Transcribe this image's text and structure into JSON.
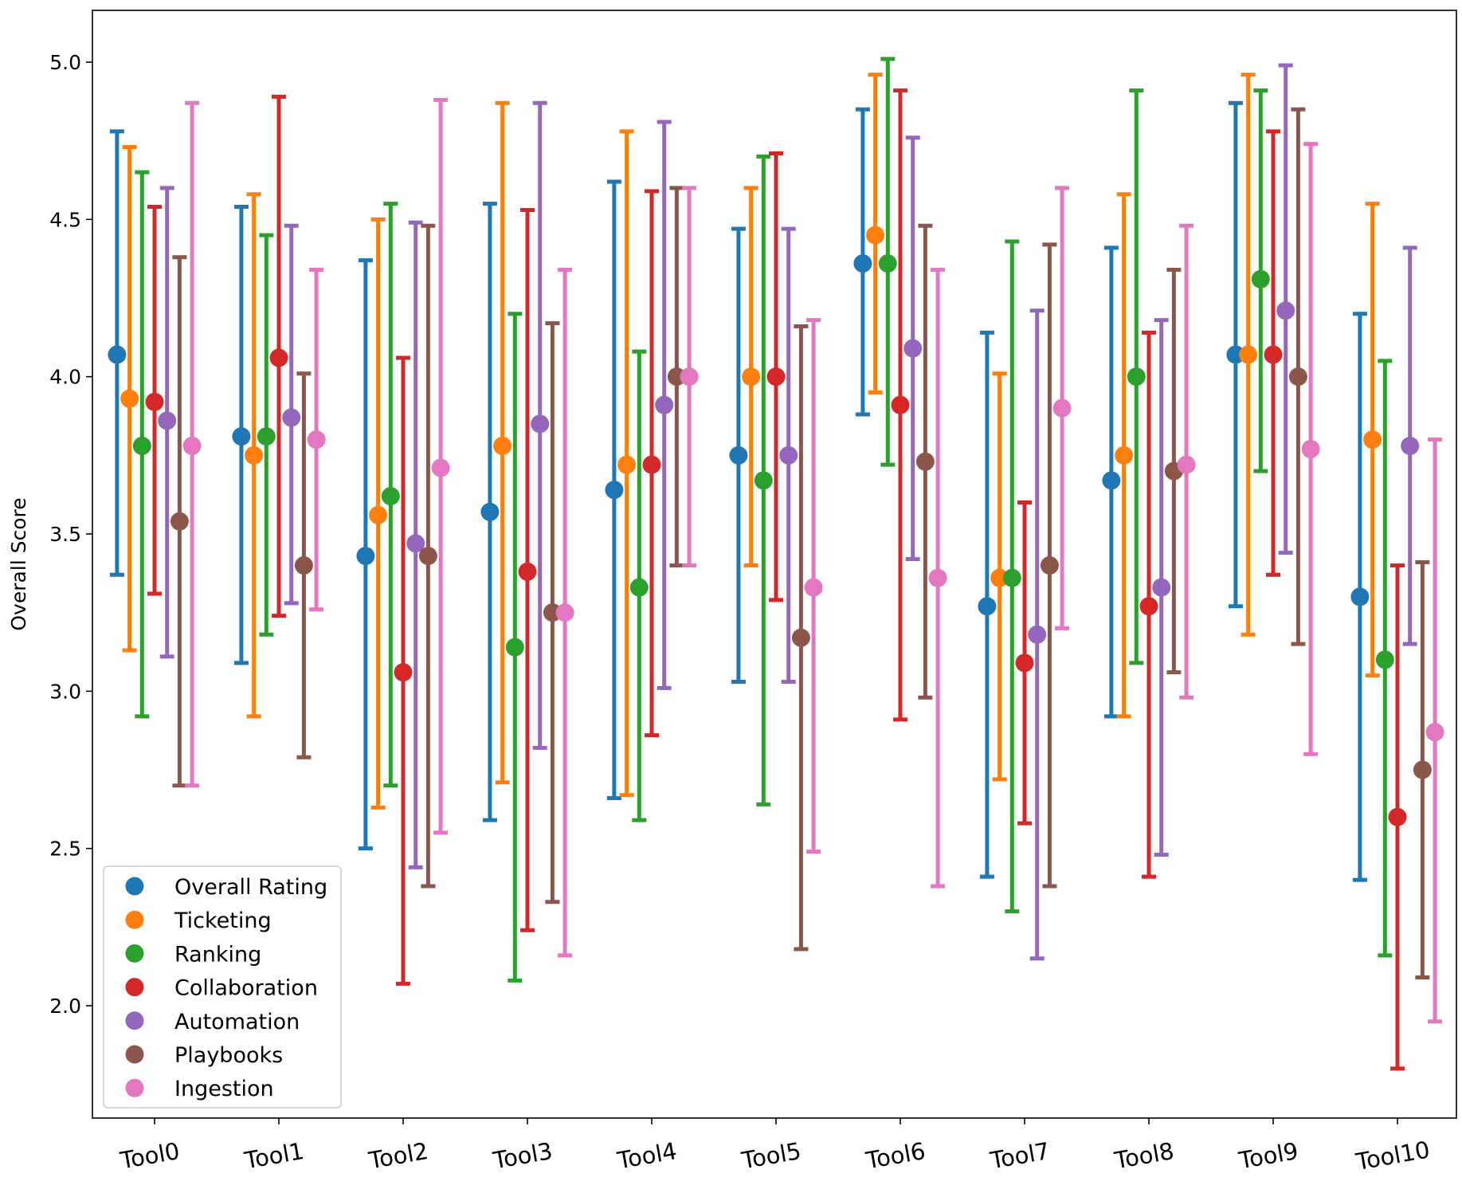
{
  "chart_data": {
    "type": "errorbar",
    "title": "",
    "xlabel": "",
    "ylabel": "Overall Score",
    "ylim": [
      1.72,
      5.17
    ],
    "yticks": [
      "2.0",
      "2.5",
      "3.0",
      "3.5",
      "4.0",
      "4.5",
      "5.0"
    ],
    "categories": [
      "Tool0",
      "Tool1",
      "Tool2",
      "Tool3",
      "Tool4",
      "Tool5",
      "Tool6",
      "Tool7",
      "Tool8",
      "Tool9",
      "Tool10"
    ],
    "legend_position": "lower-left",
    "series": [
      {
        "name": "Overall Rating",
        "color": "#1f77b4",
        "means": [
          4.07,
          3.81,
          3.43,
          3.57,
          3.64,
          3.75,
          4.36,
          3.27,
          3.67,
          4.07,
          3.3
        ],
        "lows": [
          3.37,
          3.09,
          2.5,
          2.59,
          2.66,
          3.03,
          3.88,
          2.41,
          2.92,
          3.27,
          2.4
        ],
        "highs": [
          4.78,
          4.54,
          4.37,
          4.55,
          4.62,
          4.47,
          4.85,
          4.14,
          4.41,
          4.87,
          4.2
        ]
      },
      {
        "name": "Ticketing",
        "color": "#ff7f0e",
        "means": [
          3.93,
          3.75,
          3.56,
          3.78,
          3.72,
          4.0,
          4.45,
          3.36,
          3.75,
          4.07,
          3.8
        ],
        "lows": [
          3.13,
          2.92,
          2.63,
          2.71,
          2.67,
          3.4,
          3.95,
          2.72,
          2.92,
          3.18,
          3.05
        ],
        "highs": [
          4.73,
          4.58,
          4.5,
          4.87,
          4.78,
          4.6,
          4.96,
          4.01,
          4.58,
          4.96,
          4.55
        ]
      },
      {
        "name": "Ranking",
        "color": "#2ca02c",
        "means": [
          3.78,
          3.81,
          3.62,
          3.14,
          3.33,
          3.67,
          4.36,
          3.36,
          4.0,
          4.31,
          3.1
        ],
        "lows": [
          2.92,
          3.18,
          2.7,
          2.08,
          2.59,
          2.64,
          3.72,
          2.3,
          3.09,
          3.7,
          2.16
        ],
        "highs": [
          4.65,
          4.45,
          4.55,
          4.2,
          4.08,
          4.7,
          5.01,
          4.43,
          4.91,
          4.91,
          4.05
        ]
      },
      {
        "name": "Collaboration",
        "color": "#d62728",
        "means": [
          3.92,
          4.06,
          3.06,
          3.38,
          3.72,
          4.0,
          3.91,
          3.09,
          3.27,
          4.07,
          2.6
        ],
        "lows": [
          3.31,
          3.24,
          2.07,
          2.24,
          2.86,
          3.29,
          2.91,
          2.58,
          2.41,
          3.37,
          1.8
        ],
        "highs": [
          4.54,
          4.89,
          4.06,
          4.53,
          4.59,
          4.71,
          4.91,
          3.6,
          4.14,
          4.78,
          3.4
        ]
      },
      {
        "name": "Automation",
        "color": "#9467bd",
        "means": [
          3.86,
          3.87,
          3.47,
          3.85,
          3.91,
          3.75,
          4.09,
          3.18,
          3.33,
          4.21,
          3.78
        ],
        "lows": [
          3.11,
          3.28,
          2.44,
          2.82,
          3.01,
          3.03,
          3.42,
          2.15,
          2.48,
          3.44,
          3.15
        ],
        "highs": [
          4.6,
          4.48,
          4.49,
          4.87,
          4.81,
          4.47,
          4.76,
          4.21,
          4.18,
          4.99,
          4.41
        ]
      },
      {
        "name": "Playbooks",
        "color": "#8c564b",
        "means": [
          3.54,
          3.4,
          3.43,
          3.25,
          4.0,
          3.17,
          3.73,
          3.4,
          3.7,
          4.0,
          2.75
        ],
        "lows": [
          2.7,
          2.79,
          2.38,
          2.33,
          3.4,
          2.18,
          2.98,
          2.38,
          3.06,
          3.15,
          2.09
        ],
        "highs": [
          4.38,
          4.01,
          4.48,
          4.17,
          4.6,
          4.16,
          4.48,
          4.42,
          4.34,
          4.85,
          3.41
        ]
      },
      {
        "name": "Ingestion",
        "color": "#e377c2",
        "means": [
          3.78,
          3.8,
          3.71,
          3.25,
          4.0,
          3.33,
          3.36,
          3.9,
          3.72,
          3.77,
          2.87
        ],
        "lows": [
          2.7,
          3.26,
          2.55,
          2.16,
          3.4,
          2.49,
          2.38,
          3.2,
          2.98,
          2.8,
          1.95
        ],
        "highs": [
          4.87,
          4.34,
          4.88,
          4.34,
          4.6,
          4.18,
          4.34,
          4.6,
          4.48,
          4.74,
          3.8
        ]
      }
    ]
  }
}
